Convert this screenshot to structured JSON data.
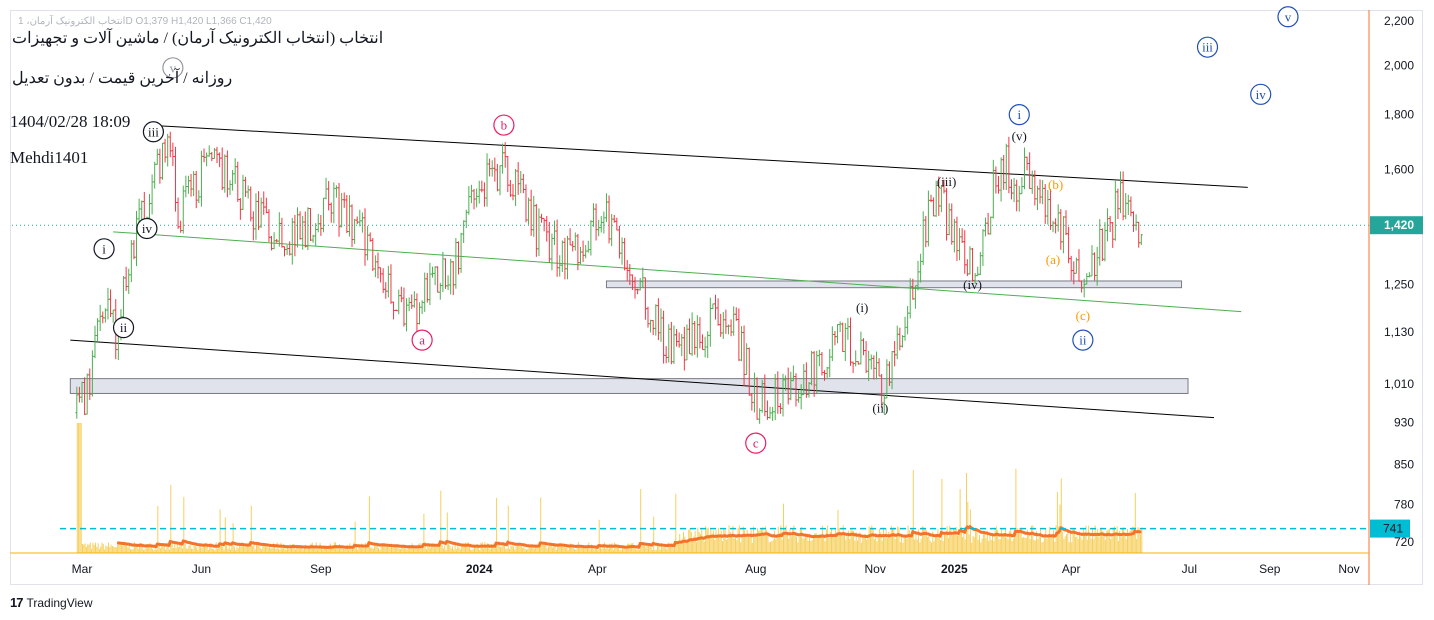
{
  "header": {
    "ohlc_line": "انتخاب الکترونیک آرمان، 1D  O1,379  H1,420  L1,366  C1,420",
    "title": "انتخاب (انتخاب الکترونیک آرمان) / ماشین آلات و تجهیزات",
    "subtitle": "روزانه / آخرین قیمت / بدون تعدیل",
    "datetime": "1404/02/28 18:09",
    "author": "Mehdi1401"
  },
  "brand": {
    "logo": "17",
    "name": "TradingView"
  },
  "colors": {
    "up": "#4caf50",
    "down": "#f23645",
    "channel": "#000000",
    "midline": "#4caf50",
    "zone_fill": "#e0e3eb",
    "price_tag": "#26a69a",
    "volume_level": "#00bcd4",
    "volume_ma": "#f4732a",
    "volume_bar": "#f5c842",
    "wave_pink": "#e91e63",
    "wave_blue": "#1e4fb5",
    "wave_orange": "#ff9800",
    "wave_black": "#131722"
  },
  "chart_data": {
    "type": "candlestick",
    "price_scale": "log",
    "ylim": [
      700,
      2300
    ],
    "y_ticks": [
      "2,200",
      "2,000",
      "1,800",
      "1,600",
      "1,420",
      "1,250",
      "1,130",
      "1,010",
      "930",
      "850",
      "780",
      "741",
      "720"
    ],
    "y_tick_values": [
      2200,
      2000,
      1800,
      1600,
      1420,
      1250,
      1130,
      1010,
      930,
      850,
      780,
      741,
      720
    ],
    "last_price": {
      "label": "1,420",
      "value": 1420
    },
    "volume_level": {
      "label": "741",
      "value": 741
    },
    "x_ticks": [
      {
        "label": "Mar",
        "date": "2023-03-01",
        "bold": false
      },
      {
        "label": "Jun",
        "date": "2023-06-01",
        "bold": false
      },
      {
        "label": "Sep",
        "date": "2023-09-01",
        "bold": false
      },
      {
        "label": "2024",
        "date": "2024-01-01",
        "bold": true
      },
      {
        "label": "Apr",
        "date": "2024-04-01",
        "bold": false
      },
      {
        "label": "Aug",
        "date": "2024-08-01",
        "bold": false
      },
      {
        "label": "Nov",
        "date": "2024-11-01",
        "bold": false
      },
      {
        "label": "2025",
        "date": "2025-01-01",
        "bold": true
      },
      {
        "label": "Apr",
        "date": "2025-04-01",
        "bold": false
      },
      {
        "label": "Jul",
        "date": "2025-07-01",
        "bold": false
      },
      {
        "label": "Sep",
        "date": "2025-09-01",
        "bold": false
      },
      {
        "label": "Nov",
        "date": "2025-11-01",
        "bold": false
      }
    ],
    "price_path": [
      [
        "2023-02-25",
        950
      ],
      [
        "2023-03-05",
        1000
      ],
      [
        "2023-03-12",
        1100
      ],
      [
        "2023-03-20",
        1180
      ],
      [
        "2023-03-28",
        1120
      ],
      [
        "2023-04-05",
        1300
      ],
      [
        "2023-04-15",
        1450
      ],
      [
        "2023-04-25",
        1550
      ],
      [
        "2023-05-02",
        1650
      ],
      [
        "2023-05-08",
        1700
      ],
      [
        "2023-05-14",
        1450
      ],
      [
        "2023-05-22",
        1500
      ],
      [
        "2023-06-01",
        1580
      ],
      [
        "2023-06-12",
        1620
      ],
      [
        "2023-06-25",
        1560
      ],
      [
        "2023-07-08",
        1480
      ],
      [
        "2023-07-20",
        1420
      ],
      [
        "2023-08-01",
        1380
      ],
      [
        "2023-08-15",
        1400
      ],
      [
        "2023-08-28",
        1440
      ],
      [
        "2023-09-08",
        1510
      ],
      [
        "2023-09-20",
        1440
      ],
      [
        "2023-10-05",
        1380
      ],
      [
        "2023-10-18",
        1300
      ],
      [
        "2023-10-30",
        1200
      ],
      [
        "2023-11-08",
        1170
      ],
      [
        "2023-11-20",
        1230
      ],
      [
        "2023-12-02",
        1280
      ],
      [
        "2023-12-12",
        1300
      ],
      [
        "2023-12-22",
        1430
      ],
      [
        "2023-12-30",
        1570
      ],
      [
        "2024-01-10",
        1560
      ],
      [
        "2024-01-20",
        1600
      ],
      [
        "2024-02-02",
        1520
      ],
      [
        "2024-02-15",
        1400
      ],
      [
        "2024-02-28",
        1350
      ],
      [
        "2024-03-10",
        1330
      ],
      [
        "2024-03-20",
        1360
      ],
      [
        "2024-03-28",
        1420
      ],
      [
        "2024-04-05",
        1470
      ],
      [
        "2024-04-15",
        1380
      ],
      [
        "2024-04-28",
        1280
      ],
      [
        "2024-05-10",
        1200
      ],
      [
        "2024-05-25",
        1100
      ],
      [
        "2024-06-05",
        1080
      ],
      [
        "2024-06-15",
        1120
      ],
      [
        "2024-06-25",
        1140
      ],
      [
        "2024-07-08",
        1180
      ],
      [
        "2024-07-20",
        1100
      ],
      [
        "2024-08-02",
        970
      ],
      [
        "2024-08-15",
        980
      ],
      [
        "2024-09-01",
        1010
      ],
      [
        "2024-09-20",
        1060
      ],
      [
        "2024-10-05",
        1120
      ],
      [
        "2024-10-15",
        1100
      ],
      [
        "2024-10-25",
        1060
      ],
      [
        "2024-11-05",
        1000
      ],
      [
        "2024-11-15",
        1050
      ],
      [
        "2024-11-25",
        1180
      ],
      [
        "2024-12-03",
        1300
      ],
      [
        "2024-12-12",
        1450
      ],
      [
        "2024-12-20",
        1520
      ],
      [
        "2024-12-28",
        1420
      ],
      [
        "2025-01-06",
        1350
      ],
      [
        "2025-01-16",
        1300
      ],
      [
        "2025-01-24",
        1380
      ],
      [
        "2025-02-01",
        1560
      ],
      [
        "2025-02-10",
        1620
      ],
      [
        "2025-02-18",
        1550
      ],
      [
        "2025-02-26",
        1590
      ],
      [
        "2025-03-06",
        1500
      ],
      [
        "2025-03-14",
        1460
      ],
      [
        "2025-03-22",
        1430
      ],
      [
        "2025-03-30",
        1350
      ],
      [
        "2025-04-07",
        1280
      ],
      [
        "2025-04-15",
        1300
      ],
      [
        "2025-04-23",
        1360
      ],
      [
        "2025-05-01",
        1400
      ],
      [
        "2025-05-08",
        1520
      ],
      [
        "2025-05-14",
        1460
      ],
      [
        "2025-05-19",
        1390
      ],
      [
        "2025-05-25",
        1420
      ]
    ],
    "channel_lines": [
      {
        "name": "upper",
        "from": [
          "2023-04-20",
          1760
        ],
        "to": [
          "2025-08-15",
          1540
        ]
      },
      {
        "name": "lower",
        "from": [
          "2023-02-20",
          1110
        ],
        "to": [
          "2025-07-20",
          940
        ]
      },
      {
        "name": "mid",
        "from": [
          "2023-03-25",
          1400
        ],
        "to": [
          "2025-08-10",
          1180
        ]
      }
    ],
    "zones": [
      {
        "from": [
          "2024-04-08",
          1260
        ],
        "to": [
          "2025-06-25",
          1242
        ]
      },
      {
        "from": [
          "2023-02-20",
          1022
        ],
        "to": [
          "2025-06-30",
          990
        ]
      }
    ],
    "wave_labels": [
      {
        "text": "v",
        "date": "2023-05-10",
        "price": 1990,
        "style": "circle",
        "color": "gray"
      },
      {
        "text": "iii",
        "date": "2023-04-25",
        "price": 1735,
        "style": "circle",
        "color": "black"
      },
      {
        "text": "iv",
        "date": "2023-04-20",
        "price": 1410,
        "style": "circle",
        "color": "black"
      },
      {
        "text": "i",
        "date": "2023-03-18",
        "price": 1350,
        "style": "circle",
        "color": "black"
      },
      {
        "text": "ii",
        "date": "2023-04-02",
        "price": 1140,
        "style": "circle",
        "color": "black"
      },
      {
        "text": "a",
        "date": "2023-11-18",
        "price": 1110,
        "style": "circle",
        "color": "pink"
      },
      {
        "text": "b",
        "date": "2024-01-20",
        "price": 1760,
        "style": "circle",
        "color": "pink"
      },
      {
        "text": "c",
        "date": "2024-08-01",
        "price": 890,
        "style": "circle",
        "color": "pink"
      },
      {
        "text": "(i)",
        "date": "2024-10-22",
        "price": 1190,
        "style": "paren",
        "color": "black"
      },
      {
        "text": "(ii)",
        "date": "2024-11-05",
        "price": 960,
        "style": "paren",
        "color": "black"
      },
      {
        "text": "(iii)",
        "date": "2024-12-26",
        "price": 1560,
        "style": "paren",
        "color": "black"
      },
      {
        "text": "(iv)",
        "date": "2025-01-15",
        "price": 1250,
        "style": "paren",
        "color": "black"
      },
      {
        "text": "(v)",
        "date": "2025-02-20",
        "price": 1720,
        "style": "paren",
        "color": "black"
      },
      {
        "text": "i",
        "date": "2025-02-20",
        "price": 1800,
        "style": "circle",
        "color": "blue"
      },
      {
        "text": "(b)",
        "date": "2025-03-20",
        "price": 1550,
        "style": "paren",
        "color": "orange"
      },
      {
        "text": "(a)",
        "date": "2025-03-18",
        "price": 1320,
        "style": "paren",
        "color": "orange"
      },
      {
        "text": "(c)",
        "date": "2025-04-10",
        "price": 1170,
        "style": "paren",
        "color": "orange"
      },
      {
        "text": "ii",
        "date": "2025-04-10",
        "price": 1110,
        "style": "circle",
        "color": "blue"
      },
      {
        "text": "iii",
        "date": "2025-07-15",
        "price": 2080,
        "style": "circle",
        "color": "blue"
      },
      {
        "text": "iv",
        "date": "2025-08-25",
        "price": 1880,
        "style": "circle",
        "color": "blue"
      },
      {
        "text": "v",
        "date": "2025-09-15",
        "price": 2220,
        "style": "circle",
        "color": "blue"
      }
    ]
  }
}
